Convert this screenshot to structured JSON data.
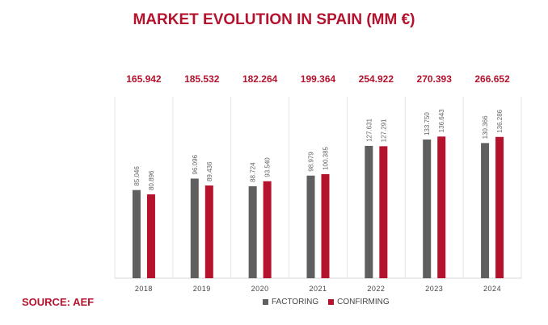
{
  "title": "MARKET EVOLUTION IN SPAIN (MM €)",
  "source": "SOURCE: AEF",
  "colors": {
    "factoring": "#5f5f5f",
    "confirming": "#b5122e",
    "accent": "#b5122e"
  },
  "chart_data": {
    "type": "bar",
    "title": "MARKET EVOLUTION IN SPAIN (MM €)",
    "categories": [
      "2018",
      "2019",
      "2020",
      "2021",
      "2022",
      "2023",
      "2024"
    ],
    "totals": [
      "165.942",
      "185.532",
      "182.264",
      "199.364",
      "254.922",
      "270.393",
      "266.652"
    ],
    "series": [
      {
        "name": "FACTORING",
        "values": [
          85046,
          96096,
          88724,
          98979,
          127631,
          133750,
          130366
        ],
        "labels": [
          "85.046",
          "96.096",
          "88.724",
          "98.979",
          "127.631",
          "133.750",
          "130.366"
        ]
      },
      {
        "name": "CONFIRMING",
        "values": [
          80896,
          89436,
          93540,
          100385,
          127291,
          136643,
          136286
        ],
        "labels": [
          "80.896",
          "89.436",
          "93.540",
          "100.385",
          "127.291",
          "136.643",
          "136.286"
        ]
      }
    ],
    "ylim": [
      0,
      175000
    ],
    "legend": "bottom",
    "grid": false
  }
}
